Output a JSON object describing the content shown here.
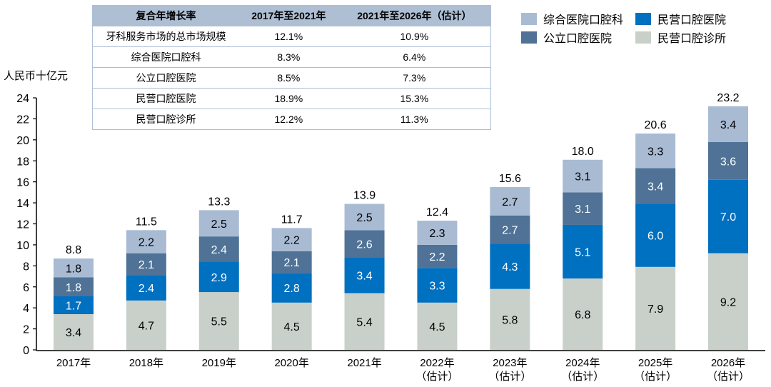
{
  "chart_data": {
    "type": "bar",
    "stacked": true,
    "title": "",
    "ylabel": "人民币十亿元",
    "xlabel": "",
    "ylim": [
      0,
      24
    ],
    "yticks": [
      0,
      2,
      4,
      6,
      8,
      10,
      12,
      14,
      16,
      18,
      20,
      22,
      24
    ],
    "grid": false,
    "legend_position": "top-right",
    "categories": [
      {
        "year": "2017年",
        "note": ""
      },
      {
        "year": "2018年",
        "note": ""
      },
      {
        "year": "2019年",
        "note": ""
      },
      {
        "year": "2020年",
        "note": ""
      },
      {
        "year": "2021年",
        "note": ""
      },
      {
        "year": "2022年",
        "note": "（估计）"
      },
      {
        "year": "2023年",
        "note": "（估计）"
      },
      {
        "year": "2024年",
        "note": "（估计）"
      },
      {
        "year": "2025年",
        "note": "（估计）"
      },
      {
        "year": "2026年",
        "note": "（估计）"
      }
    ],
    "series": [
      {
        "name": "民营口腔诊所",
        "color": "#c9d0c9",
        "label_color": "#000000",
        "values": [
          3.4,
          4.7,
          5.5,
          4.5,
          5.4,
          4.5,
          5.8,
          6.8,
          7.9,
          9.2
        ]
      },
      {
        "name": "民营口腔医院",
        "color": "#0070c0",
        "label_color": "#ffffff",
        "values": [
          1.7,
          2.4,
          2.9,
          2.8,
          3.4,
          3.3,
          4.3,
          5.1,
          6.0,
          7.0
        ]
      },
      {
        "name": "公立口腔医院",
        "color": "#4f7296",
        "label_color": "#ffffff",
        "values": [
          1.8,
          2.1,
          2.4,
          2.1,
          2.6,
          2.2,
          2.7,
          3.1,
          3.4,
          3.6
        ]
      },
      {
        "name": "综合医院口腔科",
        "color": "#a9bbd3",
        "label_color": "#000000",
        "values": [
          1.8,
          2.2,
          2.5,
          2.2,
          2.5,
          2.3,
          2.7,
          3.1,
          3.3,
          3.4
        ]
      }
    ],
    "totals": [
      8.8,
      11.5,
      13.3,
      11.7,
      13.9,
      12.4,
      15.6,
      18.0,
      20.6,
      23.2
    ]
  },
  "legend": {
    "items": [
      {
        "name": "综合医院口腔科",
        "color": "#a9bbd3"
      },
      {
        "name": "民营口腔医院",
        "color": "#0070c0"
      },
      {
        "name": "公立口腔医院",
        "color": "#4f7296"
      },
      {
        "name": "民营口腔诊所",
        "color": "#c9d0c9"
      }
    ]
  },
  "cagr_table": {
    "headers": [
      "复合年增长率",
      "2017年至2021年",
      "2021年至2026年（估计）"
    ],
    "rows": [
      [
        "牙科服务市场的总市场规模",
        "12.1%",
        "10.9%"
      ],
      [
        "综合医院口腔科",
        "8.3%",
        "6.4%"
      ],
      [
        "公立口腔医院",
        "8.5%",
        "7.3%"
      ],
      [
        "民营口腔医院",
        "18.9%",
        "15.3%"
      ],
      [
        "民营口腔诊所",
        "12.2%",
        "11.3%"
      ]
    ]
  }
}
